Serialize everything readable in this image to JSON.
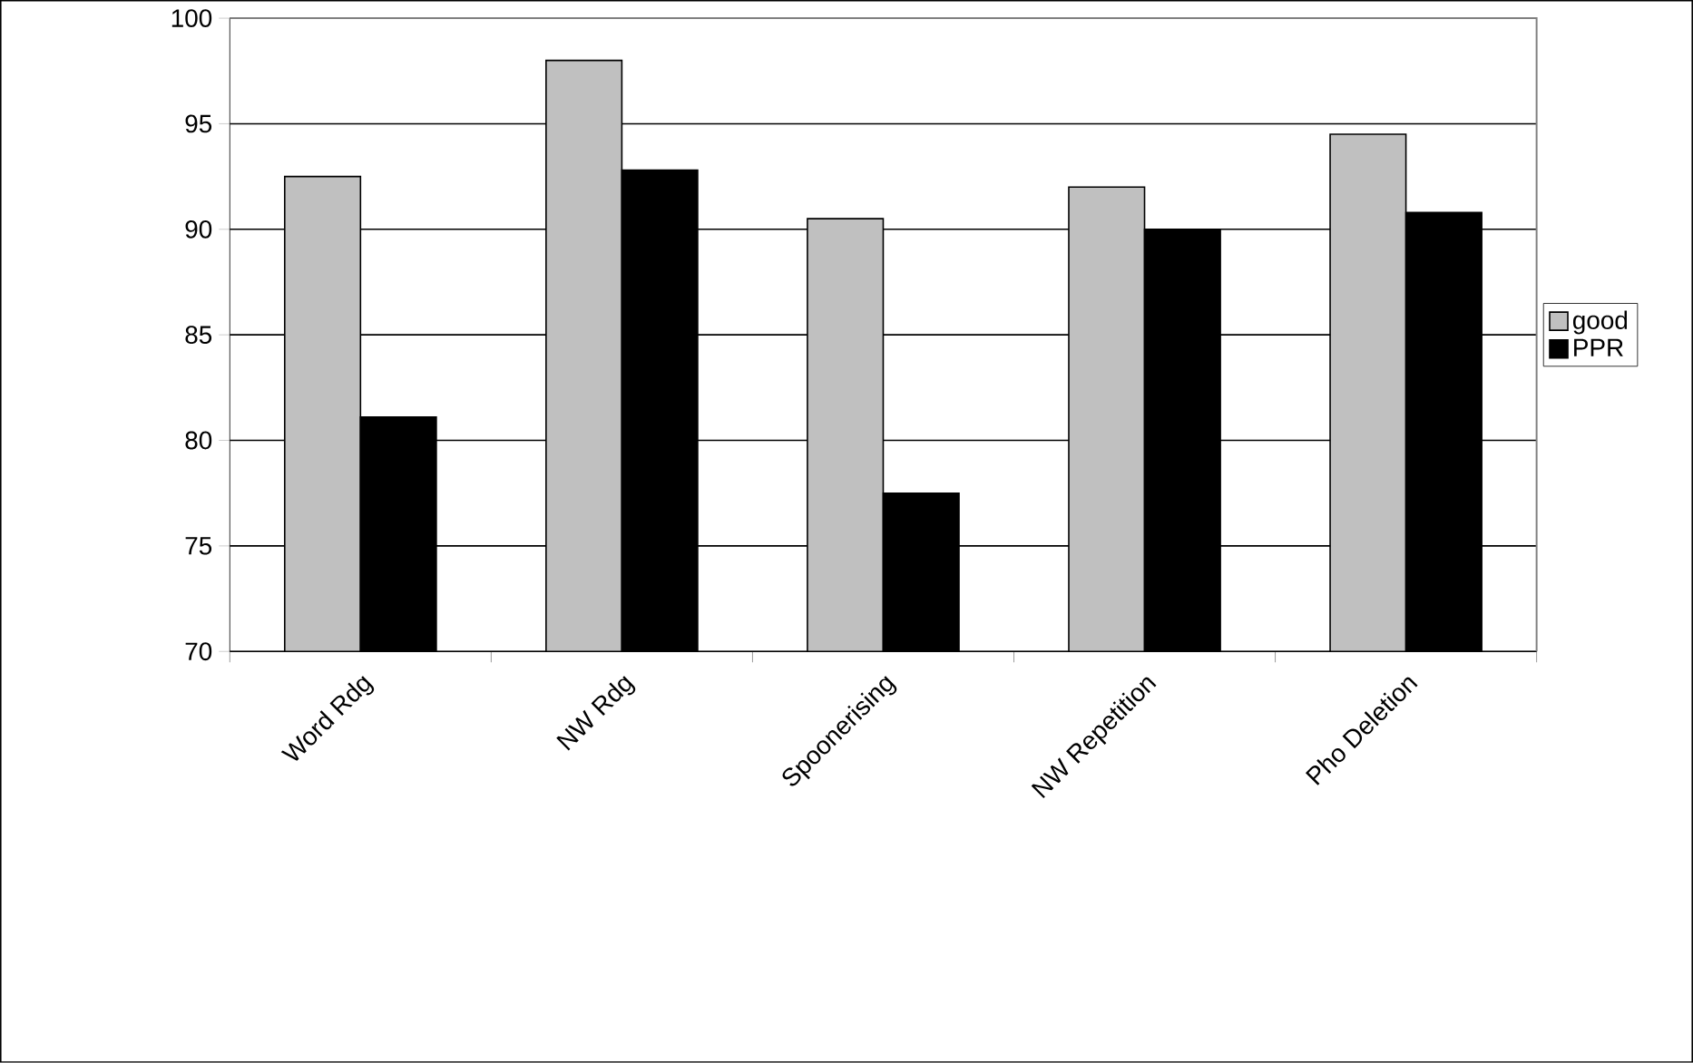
{
  "chart_data": {
    "type": "bar",
    "categories": [
      "Word Rdg",
      "NW Rdg",
      "Spoonerising",
      "NW Repetition",
      "Pho Deletion"
    ],
    "series": [
      {
        "name": "good",
        "color": "#c0c0c0",
        "values": [
          92.5,
          98,
          90.5,
          92,
          94.5
        ]
      },
      {
        "name": "PPR",
        "color": "#000000",
        "values": [
          81.1,
          92.8,
          77.5,
          90,
          90.8
        ]
      }
    ],
    "ylim": [
      70,
      100
    ],
    "yticks": [
      70,
      75,
      80,
      85,
      90,
      95,
      100
    ],
    "grid": "y",
    "legend": "right"
  }
}
